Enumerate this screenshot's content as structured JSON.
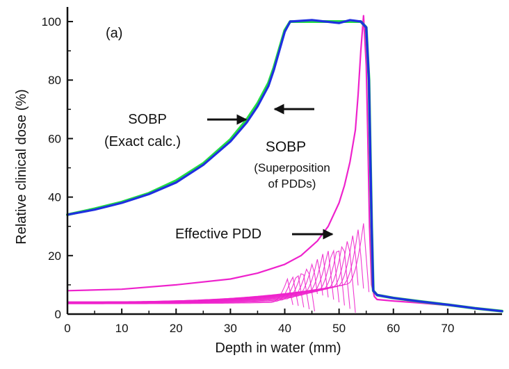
{
  "chart_data": {
    "type": "line",
    "panel_label": "(a)",
    "xlabel": "Depth in water (mm)",
    "ylabel": "Relative clinical dose (%)",
    "xlim": [
      0,
      80
    ],
    "ylim": [
      0,
      105
    ],
    "xticks": [
      0,
      10,
      20,
      30,
      40,
      50,
      60,
      70
    ],
    "yticks": [
      0,
      20,
      40,
      60,
      80,
      100
    ],
    "grid": false,
    "colors": {
      "sobp_exact": "#22dd44",
      "sobp_superposition": "#1f2fe0",
      "pdd": "#ee22cc",
      "axis": "#111111"
    },
    "series": [
      {
        "name": "SOBP (Exact calc.)",
        "color": "#22dd44",
        "x": [
          0,
          5,
          10,
          15,
          20,
          25,
          30,
          33,
          35,
          37,
          38,
          39,
          40,
          41,
          45,
          50,
          52,
          54,
          55,
          55.5,
          56,
          56.3,
          57,
          60,
          65,
          70,
          75,
          80
        ],
        "y": [
          34,
          36,
          38.3,
          41.3,
          45.6,
          51.5,
          59.7,
          66.5,
          72,
          79,
          84.3,
          90.7,
          97,
          100,
          100,
          100,
          100,
          100,
          98,
          80,
          30,
          8,
          6.5,
          5.5,
          4.3,
          3.2,
          2,
          1
        ]
      },
      {
        "name": "SOBP (Superposition of PDDs)",
        "color": "#1f2fe0",
        "x": [
          0,
          5,
          10,
          15,
          20,
          25,
          30,
          33,
          35,
          37,
          38,
          39,
          40,
          41,
          45,
          50,
          52,
          54,
          55,
          55.5,
          56,
          56.3,
          57,
          60,
          65,
          70,
          75,
          80
        ],
        "y": [
          34,
          35.7,
          38,
          41,
          45,
          51,
          59,
          65.5,
          71,
          78,
          83.5,
          90,
          96.5,
          100,
          100.5,
          99.5,
          100.5,
          100,
          98,
          80,
          30,
          8,
          6.5,
          5.5,
          4.3,
          3.2,
          2,
          1
        ]
      },
      {
        "name": "Effective PDD",
        "color": "#ee22cc",
        "x": [
          0,
          10,
          20,
          30,
          35,
          40,
          43,
          46,
          48,
          50,
          51,
          52,
          53,
          53.5,
          54,
          54.5,
          55,
          55.3,
          55.6,
          56,
          56.5,
          57,
          60,
          65,
          70,
          75,
          80
        ],
        "y": [
          8,
          8.5,
          10,
          12,
          14,
          17,
          20,
          25,
          30,
          38,
          44,
          52,
          63,
          75,
          90,
          102,
          85,
          60,
          30,
          10,
          6,
          5,
          4.5,
          3.8,
          3,
          2,
          1
        ]
      }
    ],
    "annotations": [
      {
        "text": "SOBP",
        "x": 24,
        "y": 67
      },
      {
        "text": "(Exact calc.)",
        "x": 24,
        "y": 60
      },
      {
        "text": "SOBP",
        "x": 42.5,
        "y": 56.5
      },
      {
        "text": "(Superposition",
        "x": 44,
        "y": 49
      },
      {
        "text": "of PDDs)",
        "x": 44,
        "y": 43
      },
      {
        "text": "Effective PDD",
        "x": 25,
        "y": 26
      }
    ]
  }
}
